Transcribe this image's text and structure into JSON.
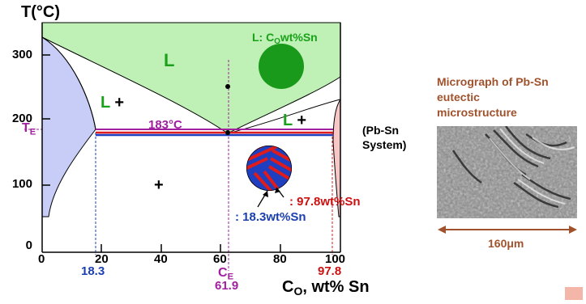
{
  "title": "T(°C)",
  "system_label": "(Pb-Sn\nSystem)",
  "system_label_line1": "(Pb-Sn",
  "system_label_line2": "System)",
  "y_ticks": [
    "300",
    "200",
    "100",
    "0"
  ],
  "x_ticks": [
    "0",
    "20",
    "40",
    "60",
    "80",
    "100"
  ],
  "x_axis_label_main": "C",
  "x_axis_label_sub": "O",
  "x_axis_label_rest": ", wt% Sn",
  "te_main": "T",
  "te_sub": "E",
  "eutectic_temp": "183°C",
  "liquid_label_main": "L:  C",
  "liquid_label_sub": "O",
  "liquid_label_rest": "wt%Sn",
  "region_L": "L",
  "region_L_plus_left": "L +",
  "region_L_plus_right": "L +",
  "plus_mark": "+",
  "ce_main": "C",
  "ce_sub": "E",
  "ce_value": "61.9",
  "left_comp": "18.3",
  "right_comp": "97.8",
  "red_phase_label": ": 97.8wt%Sn",
  "blue_phase_label": ": 18.3wt%Sn",
  "micrograph_title_line1": "Micrograph of Pb-Sn",
  "micrograph_title_line2": "eutectic",
  "micrograph_title_line3": "microstructure",
  "scale_label": "160",
  "scale_unit": "μm",
  "colors": {
    "liquid": "#bff0b5",
    "alpha": "#c7cdf7",
    "beta": "#f7c7c7",
    "eutectic_line_red": "#e01b1b",
    "eutectic_line_blue": "#1e3fbf",
    "purple": "#a020a0",
    "blob": "#1a9a1a"
  }
}
